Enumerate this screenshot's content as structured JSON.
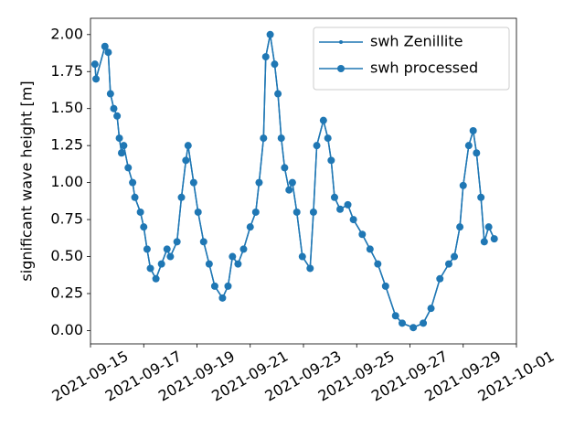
{
  "chart_data": {
    "type": "line",
    "ylabel": "significant wave height [m]",
    "x": [
      "2021-09-15T04:00",
      "2021-09-15T05:00",
      "2021-09-15T13:00",
      "2021-09-15T16:00",
      "2021-09-15T18:00",
      "2021-09-15T21:00",
      "2021-09-16T00:00",
      "2021-09-16T02:00",
      "2021-09-16T04:00",
      "2021-09-16T06:00",
      "2021-09-16T10:00",
      "2021-09-16T14:00",
      "2021-09-16T16:00",
      "2021-09-16T21:00",
      "2021-09-17T00:00",
      "2021-09-17T03:00",
      "2021-09-17T06:00",
      "2021-09-17T11:00",
      "2021-09-17T16:00",
      "2021-09-17T21:00",
      "2021-09-18T00:00",
      "2021-09-18T06:00",
      "2021-09-18T10:00",
      "2021-09-18T14:00",
      "2021-09-18T16:00",
      "2021-09-18T21:00",
      "2021-09-19T01:00",
      "2021-09-19T06:00",
      "2021-09-19T11:00",
      "2021-09-19T16:00",
      "2021-09-19T23:00",
      "2021-09-20T04:00",
      "2021-09-20T08:00",
      "2021-09-20T13:00",
      "2021-09-20T18:00",
      "2021-09-21T00:00",
      "2021-09-21T05:00",
      "2021-09-21T08:00",
      "2021-09-21T12:00",
      "2021-09-21T14:00",
      "2021-09-21T18:00",
      "2021-09-21T22:00",
      "2021-09-22T01:00",
      "2021-09-22T04:00",
      "2021-09-22T07:00",
      "2021-09-22T11:00",
      "2021-09-22T14:00",
      "2021-09-22T18:00",
      "2021-09-22T23:00",
      "2021-09-23T06:00",
      "2021-09-23T09:00",
      "2021-09-23T12:00",
      "2021-09-23T18:00",
      "2021-09-23T22:00",
      "2021-09-24T01:00",
      "2021-09-24T04:00",
      "2021-09-24T09:00",
      "2021-09-24T16:00",
      "2021-09-24T21:00",
      "2021-09-25T05:00",
      "2021-09-25T12:00",
      "2021-09-25T19:00",
      "2021-09-26T02:00",
      "2021-09-26T11:00",
      "2021-09-26T17:00",
      "2021-09-27T03:00",
      "2021-09-27T12:00",
      "2021-09-27T19:00",
      "2021-09-28T03:00",
      "2021-09-28T11:00",
      "2021-09-28T16:00",
      "2021-09-28T21:00",
      "2021-09-29T00:00",
      "2021-09-29T05:00",
      "2021-09-29T09:00",
      "2021-09-29T12:00",
      "2021-09-29T16:00",
      "2021-09-29T19:00",
      "2021-09-29T23:00",
      "2021-09-30T04:00"
    ],
    "series": [
      {
        "name": "swh Zenillite",
        "color": "#1f77b4",
        "marker": "small",
        "values": [
          1.8,
          1.7,
          1.92,
          1.88,
          1.6,
          1.5,
          1.45,
          1.3,
          1.2,
          1.25,
          1.1,
          1.0,
          0.9,
          0.8,
          0.7,
          0.55,
          0.42,
          0.35,
          0.45,
          0.55,
          0.5,
          0.6,
          0.9,
          1.15,
          1.25,
          1.0,
          0.8,
          0.6,
          0.45,
          0.3,
          0.22,
          0.3,
          0.5,
          0.45,
          0.55,
          0.7,
          0.8,
          1.0,
          1.3,
          1.85,
          2.0,
          1.8,
          1.6,
          1.3,
          1.1,
          0.95,
          1.0,
          0.8,
          0.5,
          0.42,
          0.8,
          1.25,
          1.42,
          1.3,
          1.15,
          0.9,
          0.82,
          0.85,
          0.75,
          0.65,
          0.55,
          0.45,
          0.3,
          0.1,
          0.05,
          0.02,
          0.05,
          0.15,
          0.35,
          0.45,
          0.5,
          0.7,
          0.98,
          1.25,
          1.35,
          1.2,
          0.9,
          0.6,
          0.7,
          0.62
        ]
      },
      {
        "name": "swh processed",
        "color": "#1f77b4",
        "marker": "large",
        "values": [
          1.8,
          1.7,
          1.92,
          1.88,
          1.6,
          1.5,
          1.45,
          1.3,
          1.2,
          1.25,
          1.1,
          1.0,
          0.9,
          0.8,
          0.7,
          0.55,
          0.42,
          0.35,
          0.45,
          0.55,
          0.5,
          0.6,
          0.9,
          1.15,
          1.25,
          1.0,
          0.8,
          0.6,
          0.45,
          0.3,
          0.22,
          0.3,
          0.5,
          0.45,
          0.55,
          0.7,
          0.8,
          1.0,
          1.3,
          1.85,
          2.0,
          1.8,
          1.6,
          1.3,
          1.1,
          0.95,
          1.0,
          0.8,
          0.5,
          0.42,
          0.8,
          1.25,
          1.42,
          1.3,
          1.15,
          0.9,
          0.82,
          0.85,
          0.75,
          0.65,
          0.55,
          0.45,
          0.3,
          0.1,
          0.05,
          0.02,
          0.05,
          0.15,
          0.35,
          0.45,
          0.5,
          0.7,
          0.98,
          1.25,
          1.35,
          1.2,
          0.9,
          0.6,
          0.7,
          0.62
        ]
      }
    ],
    "xlim": [
      "2021-09-15",
      "2021-10-01"
    ],
    "xticks": [
      "2021-09-15",
      "2021-09-17",
      "2021-09-19",
      "2021-09-21",
      "2021-09-23",
      "2021-09-25",
      "2021-09-27",
      "2021-09-29",
      "2021-10-01"
    ],
    "ylim": [
      -0.09,
      2.11
    ],
    "yticks": [
      {
        "value": 0,
        "label": "0.00"
      },
      {
        "value": 0.25,
        "label": "0.25"
      },
      {
        "value": 0.5,
        "label": "0.50"
      },
      {
        "value": 0.75,
        "label": "0.75"
      },
      {
        "value": 1,
        "label": "1.00"
      },
      {
        "value": 1.25,
        "label": "1.25"
      },
      {
        "value": 1.5,
        "label": "1.50"
      },
      {
        "value": 1.75,
        "label": "1.75"
      },
      {
        "value": 2,
        "label": "2.00"
      }
    ],
    "legend": "upper right",
    "grid": false
  }
}
